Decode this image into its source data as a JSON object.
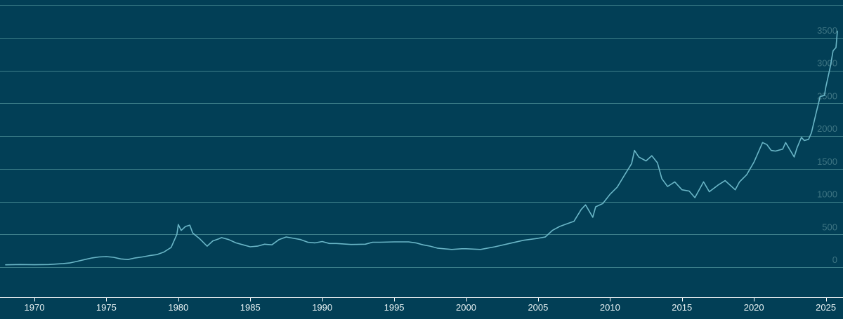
{
  "colors": {
    "background": "#023f56",
    "line": "#6ab6c7",
    "gridline": "#3d7f8a",
    "ytick_text": "#3d7482",
    "xtick_text": "#e9f3f4"
  },
  "chart_data": {
    "type": "line",
    "title": "",
    "xlabel": "",
    "ylabel": "",
    "xlim": [
      1968,
      2025.8
    ],
    "ylim": [
      -500,
      4000
    ],
    "y_ticks": [
      0,
      500,
      1000,
      1500,
      2000,
      2500,
      3000,
      3500
    ],
    "y_tick_labels": [
      "0",
      "500",
      "1000",
      "1500",
      "2000",
      "2500",
      "3000",
      "3500"
    ],
    "x_ticks": [
      1970,
      1975,
      1980,
      1985,
      1990,
      1995,
      2000,
      2005,
      2010,
      2015,
      2020,
      2025
    ],
    "x_tick_labels": [
      "1970",
      "1975",
      "1980",
      "1985",
      "1990",
      "1995",
      "2000",
      "2005",
      "2010",
      "2015",
      "2020",
      "2025"
    ],
    "grid": true,
    "legend": "none",
    "series": [
      {
        "x": [
          1968.0,
          1969.0,
          1970.0,
          1971.0,
          1972.0,
          1972.5,
          1973.0,
          1973.5,
          1974.0,
          1974.5,
          1975.0,
          1975.5,
          1976.0,
          1976.5,
          1977.0,
          1977.5,
          1978.0,
          1978.5,
          1979.0,
          1979.5,
          1979.9,
          1980.0,
          1980.2,
          1980.5,
          1980.8,
          1981.0,
          1981.5,
          1982.0,
          1982.4,
          1982.8,
          1983.0,
          1983.5,
          1984.0,
          1984.5,
          1985.0,
          1985.5,
          1986.0,
          1986.5,
          1987.0,
          1987.5,
          1988.0,
          1988.5,
          1989.0,
          1989.5,
          1990.0,
          1990.5,
          1991.0,
          1992.0,
          1993.0,
          1993.5,
          1994.0,
          1995.0,
          1996.0,
          1996.5,
          1997.0,
          1997.5,
          1998.0,
          1999.0,
          1999.7,
          2000.0,
          2001.0,
          2002.0,
          2003.0,
          2004.0,
          2005.0,
          2005.5,
          2006.0,
          2006.5,
          2007.0,
          2007.5,
          2008.0,
          2008.3,
          2008.8,
          2009.0,
          2009.5,
          2010.0,
          2010.5,
          2011.0,
          2011.5,
          2011.7,
          2012.0,
          2012.5,
          2012.9,
          2013.3,
          2013.6,
          2014.0,
          2014.5,
          2015.0,
          2015.5,
          2015.9,
          2016.5,
          2016.9,
          2017.5,
          2018.0,
          2018.7,
          2019.0,
          2019.5,
          2020.0,
          2020.6,
          2020.9,
          2021.2,
          2021.5,
          2022.0,
          2022.2,
          2022.8,
          2023.0,
          2023.3,
          2023.5,
          2023.8,
          2024.0,
          2024.3,
          2024.6,
          2024.9,
          2025.0,
          2025.3,
          2025.5,
          2025.7,
          2025.8
        ],
        "values": [
          35,
          40,
          36,
          40,
          55,
          65,
          90,
          115,
          140,
          155,
          160,
          150,
          125,
          115,
          140,
          155,
          175,
          190,
          230,
          300,
          500,
          650,
          560,
          620,
          640,
          520,
          430,
          320,
          400,
          430,
          450,
          420,
          370,
          340,
          310,
          320,
          350,
          340,
          420,
          460,
          440,
          420,
          380,
          370,
          390,
          360,
          360,
          345,
          350,
          380,
          380,
          385,
          385,
          370,
          340,
          320,
          290,
          270,
          280,
          280,
          270,
          310,
          360,
          410,
          440,
          460,
          560,
          620,
          660,
          700,
          880,
          950,
          760,
          920,
          970,
          1110,
          1220,
          1400,
          1580,
          1780,
          1680,
          1620,
          1700,
          1590,
          1350,
          1230,
          1300,
          1180,
          1160,
          1060,
          1300,
          1150,
          1250,
          1320,
          1180,
          1300,
          1410,
          1600,
          1900,
          1870,
          1780,
          1770,
          1800,
          1900,
          1680,
          1820,
          1980,
          1930,
          1950,
          2050,
          2330,
          2600,
          2620,
          2750,
          3050,
          3300,
          3350,
          3600
        ]
      }
    ]
  }
}
